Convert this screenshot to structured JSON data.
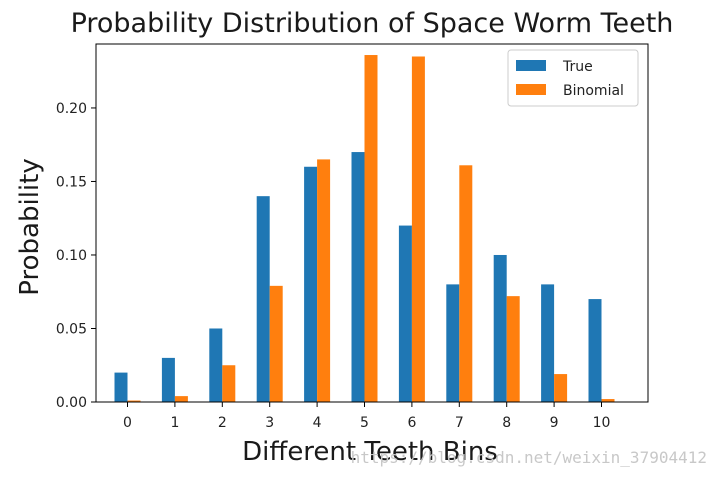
{
  "chart_data": {
    "type": "bar",
    "title": "Probability Distribution of Space Worm Teeth",
    "xlabel": "Different Teeth Bins",
    "ylabel": "Probability",
    "categories": [
      "0",
      "1",
      "2",
      "3",
      "4",
      "5",
      "6",
      "7",
      "8",
      "9",
      "10"
    ],
    "series": [
      {
        "name": "True",
        "color": "#1f77b4",
        "values": [
          0.02,
          0.03,
          0.05,
          0.14,
          0.16,
          0.17,
          0.12,
          0.08,
          0.1,
          0.08,
          0.07
        ]
      },
      {
        "name": "Binomial",
        "color": "#ff7f0e",
        "values": [
          0.001,
          0.004,
          0.025,
          0.079,
          0.165,
          0.236,
          0.235,
          0.161,
          0.072,
          0.019,
          0.002
        ]
      }
    ],
    "ylim": [
      0,
      0.2435
    ],
    "yticks": [
      0.0,
      0.05,
      0.1,
      0.15,
      0.2
    ],
    "ytick_labels": [
      "0.00",
      "0.05",
      "0.10",
      "0.15",
      "0.20"
    ],
    "legend_position": "top-right",
    "grid": false
  },
  "watermark": "https://blog.csdn.net/weixin_37904412"
}
